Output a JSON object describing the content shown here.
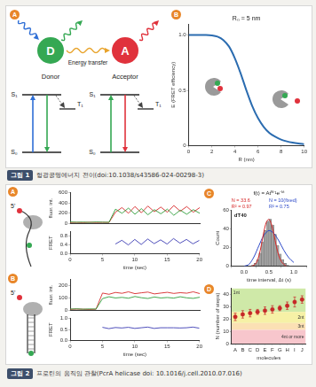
{
  "figures": [
    {
      "label": "그림 1",
      "caption": "형광공명에너지 전이(doi:10.1038/s43586-024-00298-3)",
      "panels": [
        "A",
        "B"
      ]
    },
    {
      "label": "그림 2",
      "caption": "프로틴의 움직임 관찰(PcrA helicase doi: 10.1016/j.cell.2010.07.016)",
      "panels": [
        "A",
        "B",
        "C",
        "D"
      ]
    }
  ],
  "diagram": {
    "donor": {
      "symbol": "D",
      "label": "Donor"
    },
    "acceptor": {
      "symbol": "A",
      "label": "Acceptor"
    },
    "transfer": "Energy transfer",
    "levels": [
      "S₁",
      "T₁",
      "S₀"
    ],
    "strand_end": "5'"
  },
  "chart_data": [
    {
      "type": "line",
      "annotation": "R₀ = 5 nm",
      "x_label": "R (nm)",
      "y_label": "E (FRET efficiency)",
      "x": [
        0,
        0.5,
        1,
        1.5,
        2,
        2.5,
        3,
        3.5,
        4,
        4.5,
        5,
        5.5,
        6,
        6.5,
        7,
        7.5,
        8,
        8.5,
        9,
        9.5,
        10
      ],
      "values": [
        1,
        1,
        1,
        1,
        0.996,
        0.985,
        0.955,
        0.895,
        0.79,
        0.654,
        0.5,
        0.36,
        0.25,
        0.17,
        0.115,
        0.081,
        0.056,
        0.04,
        0.029,
        0.021,
        0.015
      ],
      "color": "#2b6cb0",
      "xlim": [
        0,
        10
      ],
      "xticks": [
        0,
        2,
        4,
        6,
        8,
        10
      ],
      "ylim": [
        0,
        1.1
      ],
      "yticks": [
        0,
        0.5,
        {
          "value": 1,
          "label": "1.0"
        }
      ],
      "grid": false
    },
    {
      "type": "line",
      "y_label": "fluor. int.",
      "tick_labels": "y",
      "x": [
        0,
        1,
        2,
        3,
        4,
        5,
        6,
        7,
        8,
        9,
        10,
        11,
        12,
        13,
        14,
        15,
        16,
        17,
        18,
        19,
        20
      ],
      "series": [
        {
          "color": "#2e9e3a",
          "values": [
            30,
            25,
            28,
            22,
            30,
            26,
            24,
            280,
            200,
            300,
            180,
            290,
            170,
            270,
            190,
            280,
            160,
            260,
            180,
            270,
            200
          ]
        },
        {
          "color": "#d62728",
          "values": [
            20,
            22,
            18,
            25,
            20,
            23,
            21,
            220,
            310,
            200,
            330,
            210,
            340,
            230,
            320,
            220,
            350,
            240,
            330,
            220,
            310
          ]
        }
      ],
      "xlim": [
        0,
        20
      ],
      "ylim": [
        0,
        600
      ],
      "yticks": [
        0,
        200,
        400,
        600
      ],
      "grid": false
    },
    {
      "type": "line",
      "y_label": "FRET",
      "x_label": "time (sec)",
      "x": [
        0,
        1,
        2,
        3,
        4,
        5,
        6,
        7,
        8,
        9,
        10,
        11,
        12,
        13,
        14,
        15,
        16,
        17,
        18,
        19,
        20
      ],
      "series": [
        {
          "color": "#3b3bb3",
          "values": [
            null,
            null,
            null,
            null,
            null,
            null,
            null,
            0.44,
            0.61,
            0.4,
            0.65,
            0.42,
            0.67,
            0.46,
            0.63,
            0.44,
            0.69,
            0.48,
            0.65,
            0.45,
            0.61
          ]
        }
      ],
      "xlim": [
        0,
        20
      ],
      "xticks": [
        0,
        5,
        10,
        15,
        20
      ],
      "ylim": [
        0,
        1
      ],
      "yticks": [
        {
          "value": 0,
          "label": "0.0"
        },
        0.4,
        0.8
      ],
      "grid": false
    },
    {
      "type": "line",
      "y_label": "fluor. int.",
      "tick_labels": "y",
      "x": [
        0,
        1,
        2,
        3,
        4,
        5,
        6,
        7,
        8,
        9,
        10,
        11,
        12,
        13,
        14,
        15,
        16,
        17,
        18,
        19,
        20
      ],
      "series": [
        {
          "color": "#2e9e3a",
          "values": [
            10,
            12,
            9,
            11,
            10,
            95,
            110,
            100,
            105,
            98,
            112,
            102,
            96,
            108,
            100,
            104,
            99,
            110,
            101,
            97,
            106
          ]
        },
        {
          "color": "#d62728",
          "values": [
            8,
            10,
            9,
            7,
            9,
            140,
            130,
            145,
            138,
            150,
            135,
            142,
            148,
            133,
            140,
            146,
            137,
            143,
            139,
            150,
            136
          ]
        }
      ],
      "xlim": [
        0,
        20
      ],
      "ylim": [
        0,
        250
      ],
      "yticks": [
        0,
        100,
        200
      ],
      "grid": false
    },
    {
      "type": "line",
      "y_label": "FRET",
      "x_label": "time (sec)",
      "x": [
        0,
        1,
        2,
        3,
        4,
        5,
        6,
        7,
        8,
        9,
        10,
        11,
        12,
        13,
        14,
        15,
        16,
        17,
        18,
        19,
        20
      ],
      "series": [
        {
          "color": "#3b3bb3",
          "values": [
            null,
            null,
            null,
            null,
            null,
            0.6,
            0.54,
            0.59,
            0.57,
            0.6,
            0.55,
            0.58,
            0.61,
            0.55,
            0.58,
            0.58,
            0.58,
            0.57,
            0.58,
            0.61,
            0.56
          ]
        }
      ],
      "xlim": [
        0,
        20
      ],
      "xticks": [
        0,
        5,
        10,
        15,
        20
      ],
      "ylim": [
        0,
        1
      ],
      "yticks": [
        {
          "value": 0,
          "label": "0.0"
        },
        0.5,
        {
          "value": 1,
          "label": "1.0"
        }
      ],
      "grid": false
    },
    {
      "type": "histogram",
      "title": "dT40",
      "formula": "f(t) = Atᴺ⁻¹e⁻ᵏᵗ",
      "x_label": "time interval, Δt (s)",
      "y_label": "Count",
      "bins": [
        0,
        0.05,
        0.1,
        0.15,
        0.2,
        0.25,
        0.3,
        0.35,
        0.4,
        0.45,
        0.5,
        0.55,
        0.6,
        0.65,
        0.7,
        0.75,
        0.8,
        0.85,
        0.9,
        0.95,
        1
      ],
      "values": [
        0,
        0,
        0,
        1,
        3,
        7,
        14,
        26,
        38,
        48,
        50,
        44,
        34,
        22,
        13,
        7,
        3,
        1,
        0,
        0
      ],
      "color": "#a0a0a0",
      "fits": [
        {
          "labels": [
            "N = 33.6",
            "R² = 0.97"
          ],
          "color": "#d62728",
          "x": [
            0.15,
            0.2,
            0.25,
            0.3,
            0.35,
            0.4,
            0.45,
            0.5,
            0.55,
            0.6,
            0.65,
            0.7,
            0.75,
            0.8,
            0.85
          ],
          "values": [
            0,
            1,
            4,
            11,
            23,
            37,
            47,
            50,
            45,
            34,
            21,
            11,
            5,
            2,
            0
          ]
        },
        {
          "labels": [
            "N = 10(fixed)",
            "R² = 0.75"
          ],
          "color": "#2b48c8",
          "x": [
            0,
            0.1,
            0.2,
            0.3,
            0.4,
            0.5,
            0.6,
            0.7,
            0.8,
            0.9,
            1
          ],
          "values": [
            0,
            2,
            10,
            22,
            33,
            38,
            35,
            27,
            17,
            9,
            4
          ]
        }
      ],
      "xlim": [
        0,
        1
      ],
      "xticks": [
        {
          "value": 0,
          "label": "0.0"
        },
        0.5,
        {
          "value": 1,
          "label": "1.0"
        }
      ],
      "ylim": [
        0,
        60
      ],
      "yticks": [
        0,
        20,
        40,
        60
      ],
      "grid": false
    },
    {
      "type": "scatter",
      "x_label": "molecules",
      "y_label": "N (number of steps)",
      "categories": [
        "A",
        "B",
        "C",
        "D",
        "E",
        "F",
        "G",
        "H",
        "I",
        "J"
      ],
      "values": [
        22,
        24,
        25,
        26,
        27,
        28,
        29,
        31,
        34,
        36
      ],
      "errors": [
        3,
        3,
        3,
        2,
        3,
        3,
        2,
        3,
        4,
        3
      ],
      "color": "#c62828",
      "marker": "circle",
      "bands": [
        {
          "label": "1nt",
          "range": [
            26,
            45
          ],
          "color": "#cfe9a8"
        },
        {
          "label": "2nt",
          "range": [
            17,
            26
          ],
          "color": "#f6f1a6"
        },
        {
          "label": "3nt",
          "range": [
            11.5,
            17
          ],
          "color": "#fbe0b4"
        },
        {
          "label": "4nt or more",
          "range": [
            0,
            11.5
          ],
          "color": "#f7c6cc"
        }
      ],
      "ylim": [
        0,
        45
      ],
      "yticks": [
        0,
        10,
        20,
        30,
        40
      ],
      "grid": false
    }
  ]
}
